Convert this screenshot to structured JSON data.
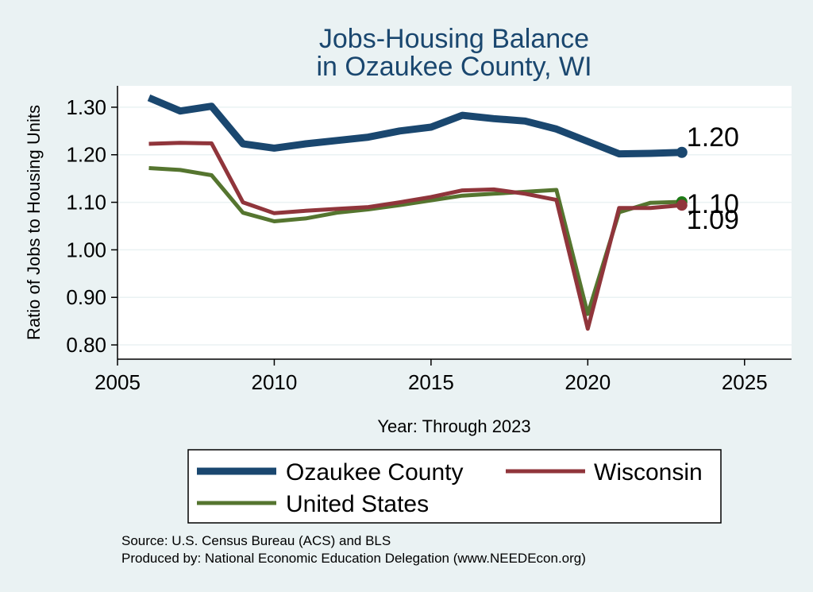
{
  "chart_data": {
    "type": "line",
    "title": [
      "Jobs-Housing Balance",
      "in Ozaukee County, WI"
    ],
    "xlabel": "Year: Through 2023",
    "ylabel": "Ratio of Jobs to Housing Units",
    "xlim": [
      2005,
      2026.5
    ],
    "ylim": [
      0.77,
      1.345
    ],
    "xticks": [
      2005,
      2010,
      2015,
      2020,
      2025
    ],
    "yticks": [
      0.8,
      0.9,
      1.0,
      1.1,
      1.2,
      1.3
    ],
    "ytick_labels": [
      "0.80",
      "0.90",
      "1.00",
      "1.10",
      "1.20",
      "1.30"
    ],
    "grid": true,
    "x": [
      2006,
      2007,
      2008,
      2009,
      2010,
      2011,
      2012,
      2013,
      2014,
      2015,
      2016,
      2017,
      2018,
      2019,
      2020,
      2021,
      2022,
      2023
    ],
    "series": [
      {
        "name": "Ozaukee County",
        "color": "#1a476f",
        "width": 9,
        "values": [
          1.32,
          1.292,
          1.302,
          1.223,
          1.214,
          1.223,
          1.23,
          1.237,
          1.25,
          1.258,
          1.283,
          1.276,
          1.271,
          1.254,
          1.228,
          1.202,
          1.203,
          1.205
        ],
        "end_label": "1.20"
      },
      {
        "name": "Wisconsin",
        "color": "#90353b",
        "width": 5,
        "values": [
          1.223,
          1.225,
          1.224,
          1.1,
          1.077,
          1.082,
          1.086,
          1.09,
          1.1,
          1.111,
          1.125,
          1.127,
          1.118,
          1.105,
          0.834,
          1.088,
          1.088,
          1.094
        ],
        "end_label": "1.09"
      },
      {
        "name": "United States",
        "color": "#55752f",
        "width": 5,
        "values": [
          1.172,
          1.168,
          1.157,
          1.078,
          1.06,
          1.066,
          1.078,
          1.085,
          1.094,
          1.104,
          1.114,
          1.118,
          1.122,
          1.126,
          0.865,
          1.079,
          1.099,
          1.101
        ],
        "end_label": "1.10"
      }
    ],
    "legend": {
      "position": "bottom",
      "entries": [
        "Ozaukee County",
        "Wisconsin",
        "United States"
      ]
    }
  },
  "source_lines": [
    "Source: U.S. Census Bureau (ACS) and BLS",
    "Produced by: National Economic Education Delegation (www.NEEDEcon.org)"
  ]
}
